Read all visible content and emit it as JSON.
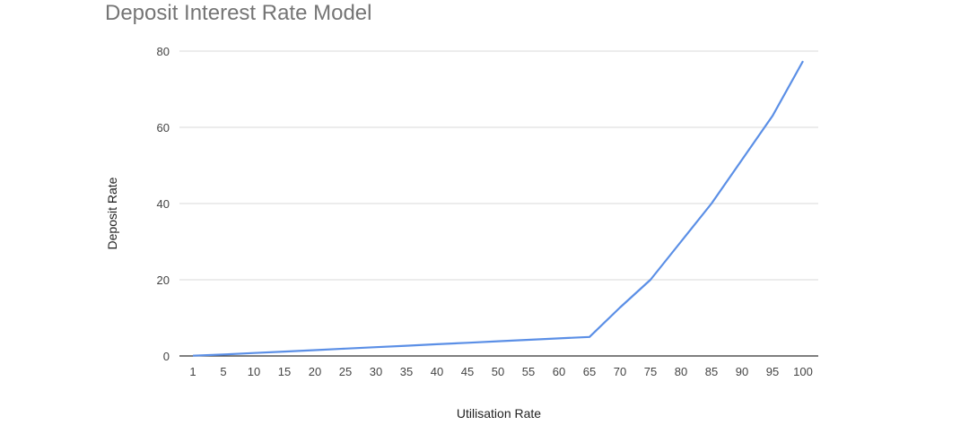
{
  "chart_data": {
    "type": "line",
    "title": "Deposit Interest Rate Model",
    "xlabel": "Utilisation Rate",
    "ylabel": "Deposit Rate",
    "ylim": [
      0,
      80
    ],
    "yticks": [
      0,
      20,
      40,
      60,
      80
    ],
    "grid": true,
    "legend": "none",
    "line_color": "#5b8fe6",
    "categories": [
      "1",
      "5",
      "10",
      "15",
      "20",
      "25",
      "30",
      "35",
      "40",
      "45",
      "50",
      "55",
      "60",
      "65",
      "70",
      "75",
      "80",
      "85",
      "90",
      "95",
      "100"
    ],
    "series": [
      {
        "name": "Deposit Rate",
        "values": [
          0.08,
          0.38,
          0.77,
          1.15,
          1.54,
          1.92,
          2.31,
          2.69,
          3.08,
          3.46,
          3.85,
          4.23,
          4.62,
          5.0,
          12.7,
          20.0,
          30.0,
          40.0,
          51.5,
          63.0,
          77.4
        ]
      }
    ]
  }
}
